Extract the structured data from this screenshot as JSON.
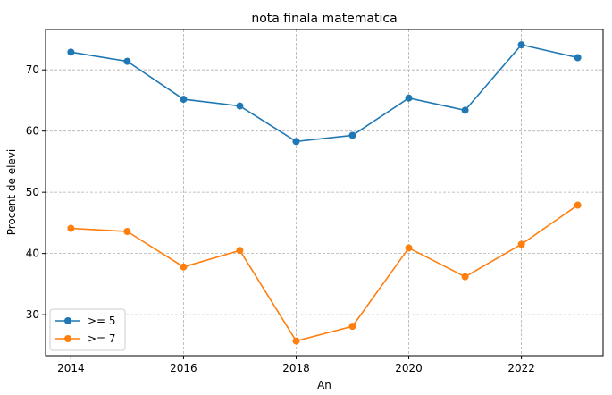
{
  "chart_data": {
    "type": "line",
    "title": "nota finala matematica",
    "xlabel": "An",
    "ylabel": "Procent de elevi",
    "x": [
      2014,
      2015,
      2016,
      2017,
      2018,
      2019,
      2020,
      2021,
      2022,
      2023
    ],
    "xlim": [
      2013.55,
      2023.45
    ],
    "ylim": [
      23.3,
      76.6
    ],
    "xticks": [
      2014,
      2016,
      2018,
      2020,
      2022
    ],
    "yticks": [
      30,
      40,
      50,
      60,
      70
    ],
    "grid": true,
    "legend_position": "lower-left",
    "series": [
      {
        "name": ">= 5",
        "color": "#1f77b4",
        "values": [
          72.9,
          71.4,
          65.2,
          64.1,
          58.3,
          59.3,
          65.4,
          63.4,
          74.1,
          72.0
        ]
      },
      {
        "name": ">= 7",
        "color": "#ff7f0e",
        "values": [
          44.1,
          43.6,
          37.8,
          40.5,
          25.7,
          28.1,
          40.9,
          36.2,
          41.5,
          47.9
        ]
      }
    ]
  }
}
